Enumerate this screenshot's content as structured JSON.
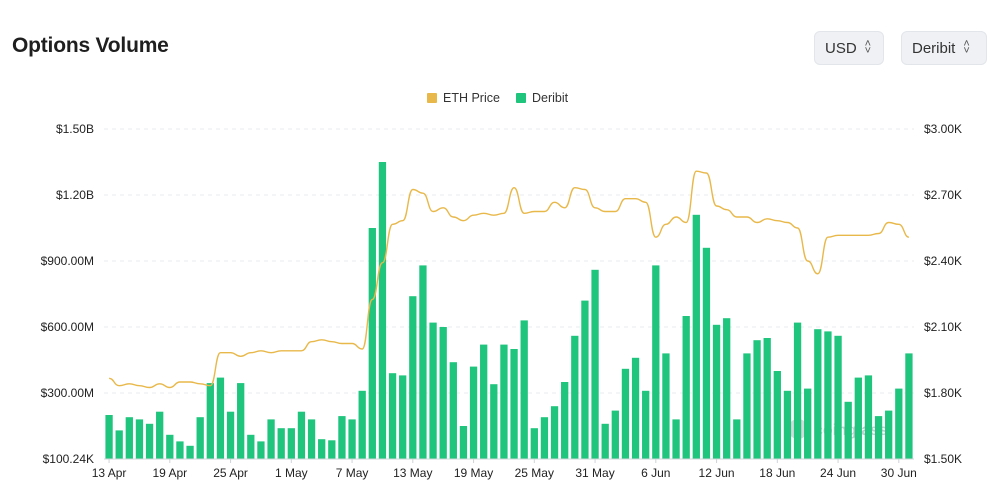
{
  "header": {
    "title": "Options Volume",
    "currency_select": "USD",
    "exchange_select": "Deribit"
  },
  "watermark": "coinglass",
  "colors": {
    "bar": "#1fc47d",
    "price_line": "#e8b84a",
    "grid": "#e9ebee"
  },
  "chart_data": {
    "type": "bar",
    "title": "Options Volume",
    "legend": {
      "placement": "top-center",
      "entries": [
        "ETH Price",
        "Deribit"
      ]
    },
    "grid": true,
    "x_ticks": [
      "13 Apr",
      "19 Apr",
      "25 Apr",
      "1 May",
      "7 May",
      "13 May",
      "19 May",
      "25 May",
      "31 May",
      "6 Jun",
      "12 Jun",
      "18 Jun",
      "24 Jun",
      "30 Jun"
    ],
    "y_left_ticks": [
      "$100.24K",
      "$300.00M",
      "$600.00M",
      "$900.00M",
      "$1.20B",
      "$1.50B"
    ],
    "y_right_ticks": [
      "$1.50K",
      "$1.80K",
      "$2.10K",
      "$2.40K",
      "$2.70K",
      "$3.00K"
    ],
    "y_left_range": [
      0,
      1500000000
    ],
    "y_right_range": [
      1200,
      3000
    ],
    "series": [
      {
        "name": "Deribit",
        "type": "bar",
        "axis": "left",
        "values": [
          200,
          130,
          190,
          180,
          160,
          215,
          110,
          80,
          60,
          190,
          345,
          370,
          215,
          345,
          110,
          80,
          180,
          140,
          140,
          215,
          180,
          90,
          85,
          195,
          180,
          310,
          1050,
          1350,
          390,
          380,
          740,
          880,
          620,
          600,
          440,
          150,
          420,
          520,
          340,
          520,
          500,
          630,
          140,
          190,
          240,
          350,
          560,
          720,
          860,
          160,
          220,
          410,
          460,
          310,
          880,
          480,
          180,
          650,
          1110,
          960,
          610,
          640,
          180,
          480,
          540,
          550,
          400,
          310,
          620,
          320,
          590,
          580,
          560,
          260,
          370,
          380,
          195,
          220,
          320,
          480
        ]
      },
      {
        "name": "ETH Price",
        "type": "line",
        "axis": "right",
        "values": [
          1640,
          1600,
          1610,
          1600,
          1590,
          1610,
          1590,
          1620,
          1620,
          1610,
          1600,
          1780,
          1780,
          1760,
          1780,
          1790,
          1780,
          1790,
          1790,
          1790,
          1840,
          1850,
          1840,
          1830,
          1830,
          1800,
          2070,
          2270,
          2480,
          2500,
          2670,
          2650,
          2550,
          2570,
          2520,
          2500,
          2530,
          2540,
          2530,
          2540,
          2680,
          2540,
          2550,
          2550,
          2600,
          2570,
          2680,
          2670,
          2570,
          2550,
          2550,
          2620,
          2620,
          2600,
          2410,
          2480,
          2520,
          2490,
          2770,
          2760,
          2580,
          2560,
          2520,
          2520,
          2490,
          2510,
          2500,
          2490,
          2460,
          2280,
          2210,
          2410,
          2420,
          2420,
          2420,
          2420,
          2430,
          2490,
          2480,
          2410
        ]
      }
    ]
  }
}
